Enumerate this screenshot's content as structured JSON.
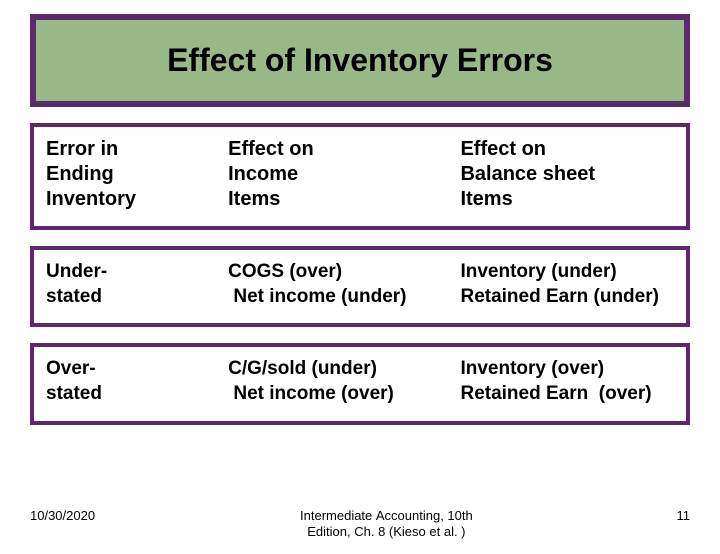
{
  "slide": {
    "title": "Effect of Inventory Errors",
    "title_bg": "#99b888",
    "box_border": "#5b2a6e",
    "header": {
      "col1": "Error in\nEnding\nInventory",
      "col2": "Effect on\nIncome\nItems",
      "col3": "Effect on\nBalance sheet\nItems"
    },
    "rows": [
      {
        "col1": "Under-\nstated",
        "col2": "COGS (over)\n Net income (under)",
        "col3": "Inventory (under)\nRetained Earn (under)"
      },
      {
        "col1": "Over-\nstated",
        "col2": "C/G/sold (under)\n Net income (over)",
        "col3": "Inventory (over)\nRetained Earn  (over)"
      }
    ],
    "footer": {
      "date": "10/30/2020",
      "source": "Intermediate Accounting, 10th\nEdition, Ch. 8 (Kieso et al. )",
      "page": "11"
    }
  }
}
